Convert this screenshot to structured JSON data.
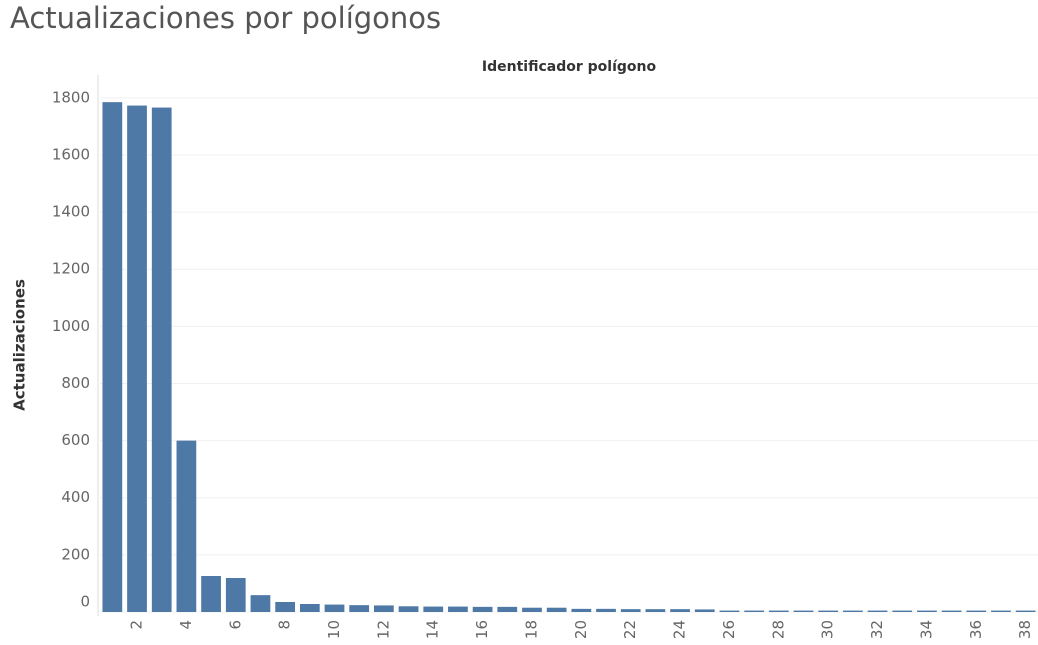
{
  "chart_data": {
    "type": "bar",
    "title": "Actualizaciones por polígonos",
    "x_label": "Identificador polígono",
    "y_label": "Actualizaciones",
    "categories": [
      null,
      2,
      null,
      4,
      null,
      6,
      null,
      8,
      null,
      10,
      null,
      12,
      null,
      14,
      null,
      16,
      null,
      18,
      null,
      20,
      null,
      22,
      null,
      24,
      null,
      26,
      null,
      28,
      null,
      30,
      null,
      32,
      null,
      34,
      null,
      36,
      null,
      38
    ],
    "values": [
      1785,
      1773,
      1766,
      600,
      126,
      119,
      59,
      35,
      28,
      26,
      24,
      23,
      20,
      19,
      19,
      18,
      18,
      15,
      15,
      11,
      11,
      10,
      10,
      10,
      9,
      5,
      5,
      5,
      5,
      5,
      5,
      5,
      5,
      5,
      5,
      5,
      5,
      5
    ],
    "color": "#4e79a7",
    "ylim": [
      0,
      1880
    ],
    "yticks": [
      0,
      200,
      400,
      600,
      800,
      1000,
      1200,
      1400,
      1600,
      1800
    ],
    "grid": true
  }
}
